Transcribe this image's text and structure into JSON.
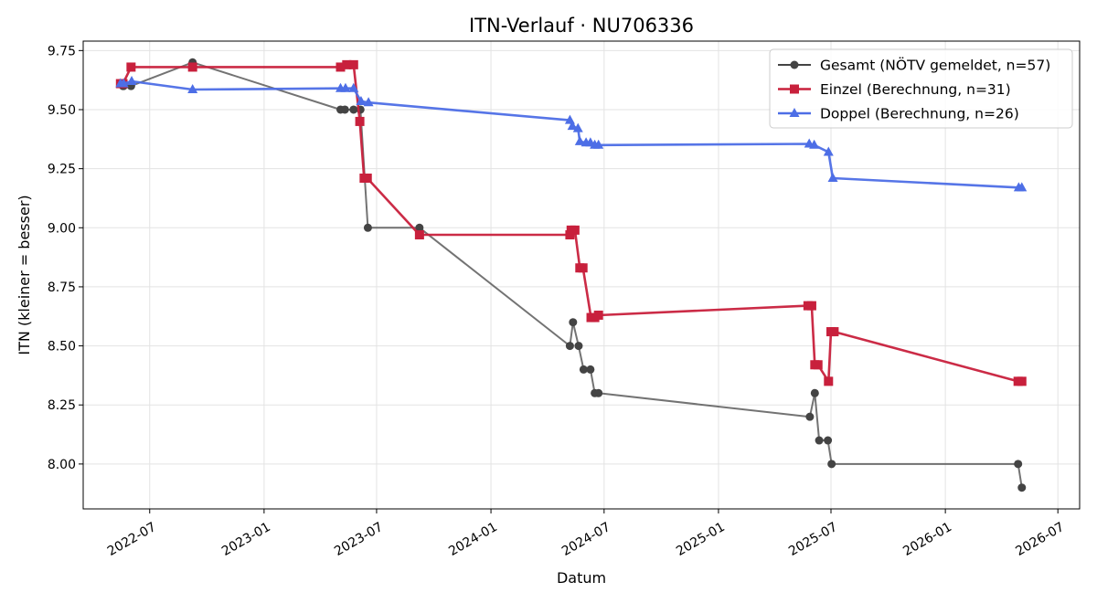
{
  "chart_data": {
    "type": "line",
    "title": "ITN-Verlauf · NU706336",
    "xlabel": "Datum",
    "ylabel": "ITN  (kleiner = besser)",
    "x_axis": "date",
    "xlim": [
      "2022-03-16",
      "2026-08-05"
    ],
    "ylim": [
      7.81,
      9.79
    ],
    "x_ticks": [
      "2022-07-01",
      "2023-01-01",
      "2023-07-01",
      "2024-01-01",
      "2024-07-01",
      "2025-01-01",
      "2025-07-01",
      "2026-01-01",
      "2026-07-01"
    ],
    "x_tick_labels": [
      "2022-07",
      "2023-01",
      "2023-07",
      "2024-01",
      "2024-07",
      "2025-01",
      "2025-07",
      "2026-01",
      "2026-07"
    ],
    "y_ticks": [
      8.0,
      8.25,
      8.5,
      8.75,
      9.0,
      9.25,
      9.5,
      9.75
    ],
    "y_tick_labels": [
      "8.00",
      "8.25",
      "8.50",
      "8.75",
      "9.00",
      "9.25",
      "9.50",
      "9.75"
    ],
    "grid": true,
    "legend_position": "top-right",
    "series": [
      {
        "name": "Gesamt (NÖTV gemeldet, n=57)",
        "color": "#444444",
        "marker": "circle",
        "x": [
          "2022-05-19",
          "2022-05-20",
          "2022-06-01",
          "2022-09-08",
          "2023-05-04",
          "2023-05-11",
          "2023-05-25",
          "2023-06-05",
          "2023-06-17",
          "2023-09-08",
          "2024-05-07",
          "2024-05-12",
          "2024-05-21",
          "2024-05-29",
          "2024-06-09",
          "2024-06-16",
          "2024-06-22",
          "2025-05-28",
          "2025-06-05",
          "2025-06-12",
          "2025-06-26",
          "2025-07-02",
          "2026-04-28",
          "2026-05-04"
        ],
        "y": [
          9.6,
          9.6,
          9.6,
          9.7,
          9.5,
          9.5,
          9.5,
          9.5,
          9.0,
          9.0,
          8.5,
          8.6,
          8.5,
          8.4,
          8.4,
          8.3,
          8.3,
          8.2,
          8.3,
          8.1,
          8.1,
          8.0,
          8.0,
          7.9
        ]
      },
      {
        "name": "Einzel (Berechnung, n=31)",
        "color": "#c8203c",
        "marker": "square",
        "x": [
          "2022-05-15",
          "2022-05-19",
          "2022-06-01",
          "2022-09-08",
          "2023-05-04",
          "2023-05-14",
          "2023-05-25",
          "2023-06-04",
          "2023-06-11",
          "2023-06-16",
          "2023-09-08",
          "2024-05-07",
          "2024-05-09",
          "2024-05-15",
          "2024-05-23",
          "2024-05-28",
          "2024-06-10",
          "2024-06-16",
          "2024-06-22",
          "2025-05-25",
          "2025-05-31",
          "2025-06-05",
          "2025-06-10",
          "2025-06-27",
          "2025-07-01",
          "2025-07-06",
          "2026-04-28",
          "2026-05-04"
        ],
        "y": [
          9.61,
          9.61,
          9.68,
          9.68,
          9.68,
          9.69,
          9.69,
          9.45,
          9.21,
          9.21,
          8.97,
          8.97,
          8.99,
          8.99,
          8.83,
          8.83,
          8.62,
          8.62,
          8.63,
          8.67,
          8.67,
          8.42,
          8.42,
          8.35,
          8.56,
          8.56,
          8.35,
          8.35
        ]
      },
      {
        "name": "Doppel (Berechnung, n=26)",
        "color": "#4d6ee6",
        "marker": "triangle",
        "x": [
          "2022-05-15",
          "2022-05-20",
          "2022-06-02",
          "2022-09-08",
          "2023-05-04",
          "2023-05-12",
          "2023-05-25",
          "2023-06-06",
          "2023-06-18",
          "2024-05-07",
          "2024-05-11",
          "2024-05-20",
          "2024-05-23",
          "2024-06-02",
          "2024-06-09",
          "2024-06-16",
          "2024-06-22",
          "2025-05-27",
          "2025-06-04",
          "2025-06-27",
          "2025-07-04",
          "2026-04-29",
          "2026-05-04"
        ],
        "y": [
          9.61,
          9.61,
          9.62,
          9.585,
          9.59,
          9.59,
          9.59,
          9.535,
          9.53,
          9.455,
          9.43,
          9.42,
          9.365,
          9.36,
          9.36,
          9.35,
          9.35,
          9.355,
          9.35,
          9.32,
          9.21,
          9.17,
          9.17
        ]
      }
    ]
  }
}
